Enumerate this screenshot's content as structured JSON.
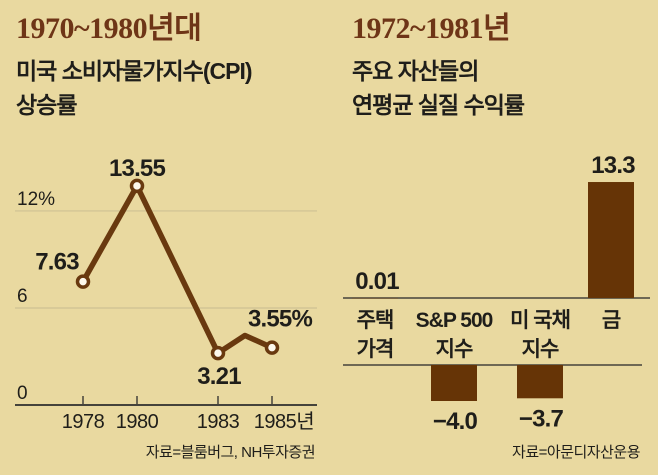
{
  "colors": {
    "background": "#e9d9a0",
    "bar_brown": "#663406",
    "line_brown": "#69390f",
    "headline_brown": "#6e3517",
    "text_dark": "#1f1e1a",
    "axis": "#45433b",
    "gridline": "#cfc193",
    "marker_fill": "#fdf8ec"
  },
  "left_panel": {
    "headline": "1970~1980년대",
    "subtitle_lines": [
      "미국 소비자물가지수(CPI)",
      "상승률"
    ],
    "source": "자료=블룸버그, NH투자증권"
  },
  "right_panel": {
    "headline": "1972~1981년",
    "subtitle_lines": [
      "주요 자산들의",
      "연평균 실질 수익률"
    ],
    "source": "자료=아문디자산운용"
  },
  "chart_data": [
    {
      "type": "line",
      "title": "1970~1980년대 미국 소비자물가지수(CPI) 상승률",
      "unit": "%",
      "x": [
        1978,
        1980,
        1983,
        1984,
        1985
      ],
      "values": [
        7.63,
        13.55,
        3.21,
        4.3,
        3.55
      ],
      "point_labels": [
        "7.63",
        "13.55",
        "3.21",
        "",
        "3.55%"
      ],
      "markers": [
        true,
        true,
        true,
        false,
        true
      ],
      "x_ticks": [
        {
          "year": 1978,
          "label": "1978"
        },
        {
          "year": 1980,
          "label": "1980"
        },
        {
          "year": 1983,
          "label": "1983"
        },
        {
          "year": 1985,
          "label": "1985년"
        }
      ],
      "y_ticks": [
        {
          "value": 12,
          "label": "12%"
        },
        {
          "value": 6,
          "label": "6"
        },
        {
          "value": 0,
          "label": "0"
        }
      ],
      "ylim": [
        0,
        14.5
      ],
      "grid": true,
      "legend": "none",
      "source": "자료=블룸버그, NH투자증권"
    },
    {
      "type": "bar",
      "title": "1972~1981년 주요 자산들의 연평균 실질 수익률",
      "unit": "%",
      "categories": [
        "주택 가격",
        "S&P 500 지수",
        "미 국채 지수",
        "금"
      ],
      "category_lines": [
        [
          "주택",
          "가격"
        ],
        [
          "S&P 500",
          "지수"
        ],
        [
          "미 국채",
          "지수"
        ],
        [
          "금"
        ]
      ],
      "values": [
        0.01,
        -4.0,
        -3.7,
        13.3
      ],
      "value_labels": [
        "0.01",
        "−4.0",
        "−3.7",
        "13.3"
      ],
      "ylim": [
        -5,
        14.5
      ],
      "grid": false,
      "legend": "none",
      "source": "자료=아문디자산운용"
    }
  ]
}
